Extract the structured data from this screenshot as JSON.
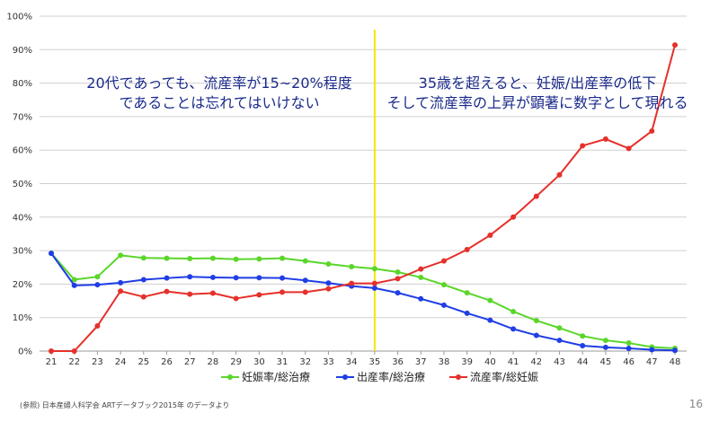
{
  "chart_data": {
    "type": "line",
    "x": [
      21,
      22,
      23,
      24,
      25,
      26,
      27,
      28,
      29,
      30,
      31,
      32,
      33,
      34,
      35,
      36,
      37,
      38,
      39,
      40,
      41,
      42,
      43,
      44,
      45,
      46,
      47,
      48
    ],
    "ylim": [
      0,
      100
    ],
    "yticks": [
      "0%",
      "10%",
      "20%",
      "30%",
      "40%",
      "50%",
      "60%",
      "70%",
      "80%",
      "90%",
      "100%"
    ],
    "grid": true,
    "legend_position": "bottom",
    "vertical_marker_x": 35,
    "series": [
      {
        "name": "妊娠率/総治療",
        "color": "#5ad62a",
        "values": [
          29.2,
          21.3,
          22.2,
          28.6,
          27.8,
          27.7,
          27.6,
          27.7,
          27.4,
          27.5,
          27.7,
          26.9,
          26.0,
          25.2,
          24.6,
          23.6,
          22.0,
          19.8,
          17.4,
          15.1,
          11.8,
          9.1,
          6.9,
          4.5,
          3.2,
          2.4,
          1.2,
          0.8
        ]
      },
      {
        "name": "出産率/総治療",
        "color": "#1f3ee6",
        "values": [
          29.2,
          19.6,
          19.8,
          20.4,
          21.3,
          21.8,
          22.2,
          22.0,
          21.9,
          21.9,
          21.8,
          21.1,
          20.3,
          19.4,
          18.8,
          17.4,
          15.6,
          13.7,
          11.3,
          9.2,
          6.6,
          4.7,
          3.2,
          1.6,
          1.1,
          0.8,
          0.4,
          0.2
        ]
      },
      {
        "name": "流産率/総妊娠",
        "color": "#e6302a",
        "values": [
          0.0,
          0.0,
          7.5,
          17.9,
          16.2,
          17.8,
          17.0,
          17.3,
          15.7,
          16.8,
          17.6,
          17.6,
          18.6,
          20.2,
          20.2,
          21.6,
          24.5,
          26.9,
          30.3,
          34.6,
          40.0,
          46.2,
          52.6,
          61.3,
          63.3,
          60.5,
          65.7,
          91.4
        ]
      }
    ],
    "annotations": {
      "left_line1": "20代であっても、流産率が15~20%程度",
      "left_line2": "であることは忘れてはいけない",
      "right_line1": "35歳を超えると、妊娠/出産率の低下",
      "right_line2": "そして流産率の上昇が顕著に数字として現れる"
    }
  },
  "footer": {
    "source": "(参照) 日本産婦人科学会 ARTデータブック2015年 のデータより",
    "page_number": "16"
  },
  "colors": {
    "grid": "#d0d0d0",
    "axis": "#999999",
    "marker_line": "#f2e600",
    "annotation_text": "#1a2a8a"
  }
}
